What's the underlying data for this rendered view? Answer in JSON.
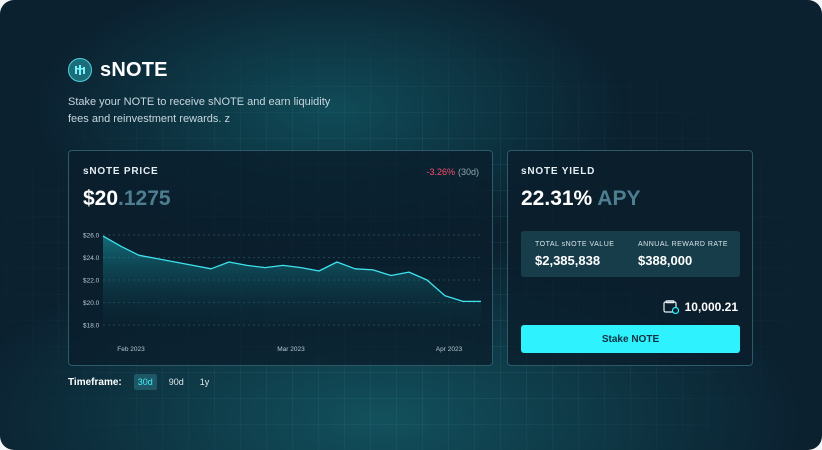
{
  "header": {
    "title": "sNOTE",
    "description": "Stake your NOTE to receive sNOTE and earn liquidity fees and reinvestment rewards. z"
  },
  "price_card": {
    "label": "sNOTE PRICE",
    "change": "-3.26%",
    "change_period": "(30d)",
    "price_whole": "$20",
    "price_decimal": ".1275"
  },
  "yield_card": {
    "label": "sNOTE YIELD",
    "apy_value": "22.31%",
    "apy_unit": "APY",
    "total_label": "TOTAL sNOTE VALUE",
    "total_value": "$2,385,838",
    "reward_label": "ANNUAL REWARD RATE",
    "reward_value": "$388,000",
    "wallet_balance": "10,000.21",
    "stake_button": "Stake NOTE"
  },
  "timeframe": {
    "label": "Timeframe:",
    "options": [
      "30d",
      "90d",
      "1y"
    ],
    "active": "30d"
  },
  "colors": {
    "accent": "#2ef2fd",
    "negative": "#ff4d6d",
    "background": "#0b2130"
  },
  "chart_data": {
    "type": "area",
    "ylabels": [
      "$26.0",
      "$24.0",
      "$22.0",
      "$20.0",
      "$18.0"
    ],
    "yticks": [
      26,
      24,
      22,
      20,
      18
    ],
    "ylim": [
      18,
      26
    ],
    "xlabels": [
      "Feb 2023",
      "Mar 2023",
      "Apr 2023"
    ],
    "series": [
      {
        "values": [
          25.9,
          25.0,
          24.2,
          23.9,
          23.6,
          23.3,
          23.0,
          23.6,
          23.3,
          23.1,
          23.3,
          23.1,
          22.8,
          23.6,
          23.0,
          22.9,
          22.4,
          22.7,
          22.0,
          20.6,
          20.1,
          20.1
        ]
      }
    ]
  }
}
